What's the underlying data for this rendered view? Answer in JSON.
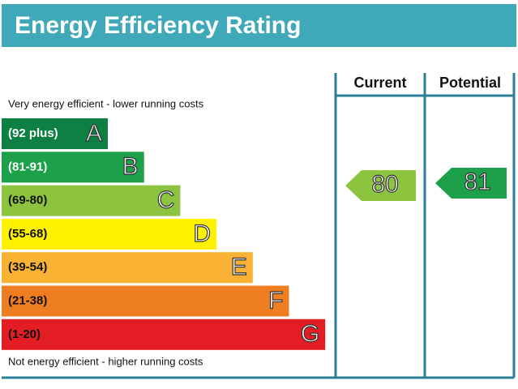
{
  "title": "Energy Efficiency Rating",
  "columns": [
    "Current",
    "Potential"
  ],
  "top_note": "Very energy efficient - lower running costs",
  "bottom_note": "Not energy efficient - higher running costs",
  "bands": [
    {
      "range": "(92 plus)",
      "letter": "A",
      "color": "#0e8043"
    },
    {
      "range": "(81-91)",
      "letter": "B",
      "color": "#1ca04a"
    },
    {
      "range": "(69-80)",
      "letter": "C",
      "color": "#8cc43f"
    },
    {
      "range": "(55-68)",
      "letter": "D",
      "color": "#fff200"
    },
    {
      "range": "(39-54)",
      "letter": "E",
      "color": "#f9b233"
    },
    {
      "range": "(21-38)",
      "letter": "F",
      "color": "#ef7d22"
    },
    {
      "range": "(1-20)",
      "letter": "G",
      "color": "#e31d23"
    }
  ],
  "current": {
    "value": 80,
    "color": "#8cc43f"
  },
  "potential": {
    "value": 81,
    "color": "#1ca04a"
  }
}
